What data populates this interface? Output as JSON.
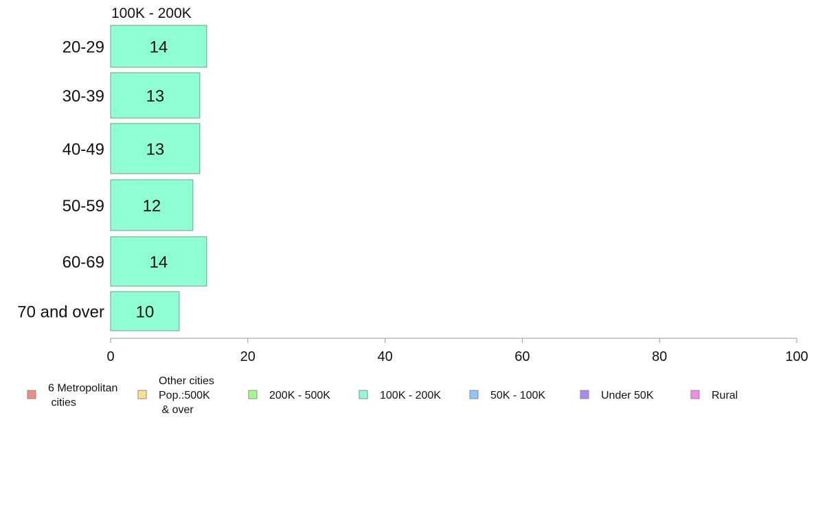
{
  "chart_data": {
    "type": "bar",
    "orientation": "horizontal",
    "title": "100K - 200K",
    "categories": [
      "20-29",
      "30-39",
      "40-49",
      "50-59",
      "60-69",
      "70 and over"
    ],
    "values": [
      14,
      13,
      13,
      12,
      14,
      10
    ],
    "series_color": "#8fffd4",
    "xlim": [
      0,
      100
    ],
    "xticks": [
      0,
      20,
      40,
      60,
      80,
      100
    ],
    "grid": false,
    "legend_position": "bottom",
    "legend": [
      {
        "label": "6 Metropolitan\n cities",
        "color": "#f28b82"
      },
      {
        "label": "Other cities\nPop.:500K\n & over",
        "color": "#fde28a"
      },
      {
        "label": "200K - 500K",
        "color": "#a6ff8a"
      },
      {
        "label": "100K - 200K",
        "color": "#8fffd4"
      },
      {
        "label": "50K - 100K",
        "color": "#8ac8ff"
      },
      {
        "label": "Under 50K",
        "color": "#a98bf5"
      },
      {
        "label": "Rural",
        "color": "#f58be8"
      }
    ]
  }
}
